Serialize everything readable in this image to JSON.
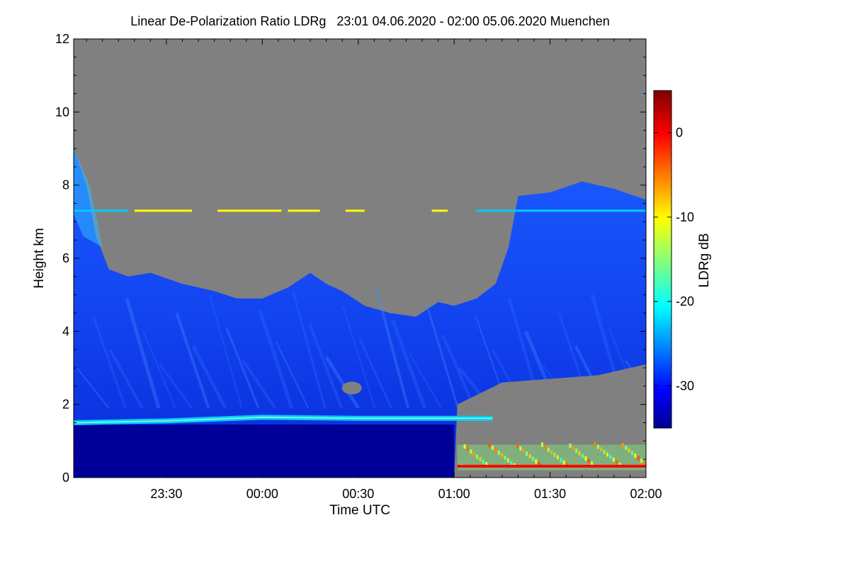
{
  "chart_data": {
    "type": "heatmap",
    "title": "Linear De-Polarization Ratio LDRg   23:01 04.06.2020 - 02:00 05.06.2020 Muenchen",
    "xlabel": "Time UTC",
    "ylabel": "Height km",
    "x_range": [
      "23:01",
      "02:00"
    ],
    "xlim_minutes_after_2300": [
      1,
      180
    ],
    "ylim_km": [
      0,
      12
    ],
    "x_ticks": [
      {
        "label": "23:30",
        "minutes": 30
      },
      {
        "label": "00:00",
        "minutes": 60
      },
      {
        "label": "00:30",
        "minutes": 90
      },
      {
        "label": "01:00",
        "minutes": 120
      },
      {
        "label": "01:30",
        "minutes": 150
      },
      {
        "label": "02:00",
        "minutes": 180
      }
    ],
    "y_ticks": [
      0,
      2,
      4,
      6,
      8,
      10,
      12
    ],
    "colorbar": {
      "label": "LDRg dB",
      "range_db": [
        -35,
        5
      ],
      "ticks": [
        0,
        -10,
        -20,
        -30
      ],
      "colormap": "jet"
    },
    "no_data_color": "#808080",
    "cloud_top_profile_km": [
      [
        1,
        9.0
      ],
      [
        5,
        8.0
      ],
      [
        8,
        6.6
      ],
      [
        12,
        5.7
      ],
      [
        18,
        5.5
      ],
      [
        25,
        5.6
      ],
      [
        35,
        5.3
      ],
      [
        45,
        5.1
      ],
      [
        52,
        4.9
      ],
      [
        60,
        4.9
      ],
      [
        68,
        5.2
      ],
      [
        75,
        5.6
      ],
      [
        80,
        5.3
      ],
      [
        85,
        5.1
      ],
      [
        92,
        4.7
      ],
      [
        100,
        4.5
      ],
      [
        108,
        4.4
      ],
      [
        115,
        4.8
      ],
      [
        120,
        4.7
      ],
      [
        127,
        4.9
      ],
      [
        133,
        5.3
      ],
      [
        137,
        6.3
      ],
      [
        140,
        7.7
      ],
      [
        150,
        7.8
      ],
      [
        160,
        8.1
      ],
      [
        170,
        7.9
      ],
      [
        180,
        7.6
      ]
    ],
    "low_cloud_base_profile_km": [
      [
        120,
        0
      ],
      [
        121,
        2.0
      ],
      [
        135,
        2.6
      ],
      [
        150,
        2.7
      ],
      [
        165,
        2.8
      ],
      [
        180,
        3.1
      ]
    ],
    "residual_layer_km": [
      [
        1,
        1.5
      ],
      [
        30,
        1.55
      ],
      [
        60,
        1.65
      ],
      [
        90,
        1.62
      ],
      [
        120,
        1.62
      ],
      [
        132,
        1.62
      ]
    ],
    "enhanced_layer_7_3km": {
      "height_km": 7.3,
      "ldr_db": -10
    },
    "surface_layer_after_0100": {
      "height_km": 0.3,
      "ldr_db": 0
    },
    "series": [
      {
        "value_db": -34,
        "region": "below 1.4 km, 23:01-01:00"
      },
      {
        "value_db": -28,
        "region": "cloud layer 2-8 km"
      },
      {
        "value_db": -22,
        "region": "residual layer ~1.6 km"
      },
      {
        "value_db": 0,
        "region": "near-surface echoes after 01:00"
      }
    ]
  }
}
